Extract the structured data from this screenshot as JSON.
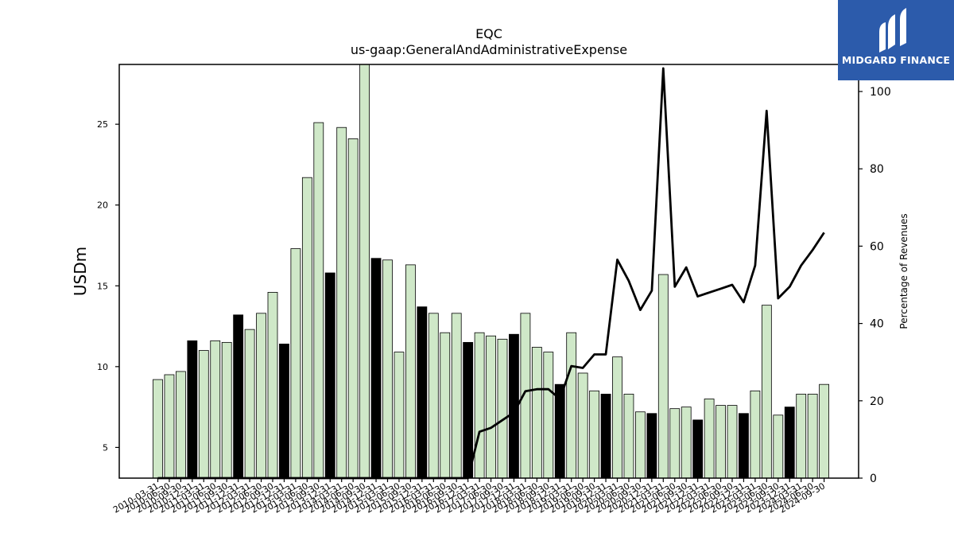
{
  "logo": {
    "text": "MIDGARD FINANCE",
    "background": "#2c5bab"
  },
  "chart_data": {
    "type": "bar",
    "title": "EQC",
    "subtitle": "us-gaap:GeneralAndAdministrativeExpense",
    "ylabel": "USDm",
    "y2label": "Percentage of Revenues",
    "ylim": [
      3.1,
      28.7
    ],
    "y2lim": [
      0,
      107
    ],
    "yticks": [
      5,
      10,
      15,
      20,
      25
    ],
    "y2ticks": [
      0,
      20,
      40,
      60,
      80,
      100
    ],
    "bar_colors": {
      "quarter": "#cfe8c8",
      "fiscal_year_end": "#000000"
    },
    "line_color": "#000000",
    "categories": [
      "2010-03-31",
      "2010-06-30",
      "2010-09-30",
      "2010-12-31",
      "2011-03-31",
      "2011-06-30",
      "2011-09-30",
      "2011-12-31",
      "2012-03-31",
      "2012-06-30",
      "2012-09-30",
      "2012-12-31",
      "2013-03-31",
      "2013-06-30",
      "2013-09-30",
      "2013-12-31",
      "2014-03-31",
      "2014-06-30",
      "2014-09-30",
      "2014-12-31",
      "2015-03-31",
      "2015-06-30",
      "2015-09-30",
      "2015-12-31",
      "2016-03-31",
      "2016-06-30",
      "2016-09-30",
      "2016-12-31",
      "2017-03-31",
      "2017-06-30",
      "2017-09-30",
      "2017-12-31",
      "2018-03-31",
      "2018-06-30",
      "2018-09-30",
      "2018-12-31",
      "2019-03-31",
      "2019-06-30",
      "2019-09-30",
      "2019-12-31",
      "2020-03-31",
      "2020-06-30",
      "2020-09-30",
      "2020-12-31",
      "2021-03-31",
      "2021-06-30",
      "2021-09-30",
      "2021-12-31",
      "2022-03-31",
      "2022-06-30",
      "2022-09-30",
      "2022-12-31",
      "2023-03-31",
      "2023-06-30",
      "2023-09-30",
      "2023-12-31",
      "2024-03-31",
      "2024-06-30",
      "2024-09-30"
    ],
    "series": [
      {
        "kind": "bar",
        "values": [
          9.2,
          9.5,
          9.7,
          11.6,
          11.0,
          11.6,
          11.5,
          13.2,
          12.3,
          13.3,
          14.6,
          11.4,
          17.3,
          21.7,
          25.1,
          15.8,
          24.8,
          24.1,
          28.8,
          16.7,
          16.6,
          10.9,
          16.3,
          13.7,
          13.3,
          12.1,
          13.3,
          11.5,
          12.1,
          11.9,
          11.7,
          12.0,
          13.3,
          11.2,
          10.9,
          8.9,
          12.1,
          9.6,
          8.5,
          8.3,
          10.6,
          8.3,
          7.2,
          7.1,
          15.7,
          7.4,
          7.5,
          6.7,
          8.0,
          7.6,
          7.6,
          7.1,
          8.5,
          13.8,
          7.0,
          7.5,
          8.3,
          8.3,
          8.9
        ]
      },
      {
        "kind": "line",
        "axis": "right",
        "values": [
          0,
          0,
          0,
          0,
          0,
          0,
          0,
          0,
          0,
          0,
          0,
          0,
          0,
          0,
          0,
          0,
          0,
          0,
          0,
          0,
          0,
          0,
          0,
          0,
          0,
          0,
          0,
          0,
          12,
          13,
          15,
          17,
          22.5,
          23,
          23,
          20.5,
          29,
          28.5,
          32,
          32,
          56.5,
          51,
          43.5,
          48.5,
          106,
          49.5,
          54.5,
          47,
          48,
          49,
          50,
          45.5,
          55,
          95,
          46.5,
          49.5,
          55,
          59,
          63.5
        ]
      }
    ]
  }
}
